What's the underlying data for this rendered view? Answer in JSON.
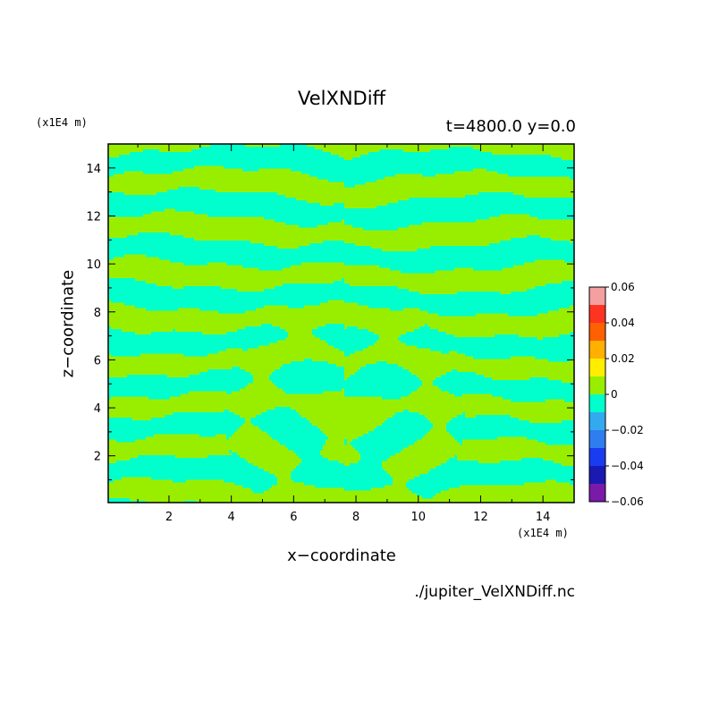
{
  "chart_data": {
    "type": "heatmap",
    "title": "VelXNDiff",
    "subtitle": "t=4800.0 y=0.0",
    "xlabel": "x−coordinate",
    "ylabel": "z−coordinate",
    "x_units": "(x1E4 m)",
    "z_units": "(x1E4 m)",
    "xlim": [
      0.05,
      15.0
    ],
    "ylim": [
      0.05,
      15.0
    ],
    "x_ticks": [
      "2",
      "4",
      "6",
      "8",
      "10",
      "12",
      "14"
    ],
    "y_ticks": [
      "2",
      "4",
      "6",
      "8",
      "10",
      "12",
      "14"
    ],
    "source_file": "./jupiter_VelXNDiff.nc",
    "colorbar": {
      "levels": [
        -0.06,
        -0.05,
        -0.04,
        -0.03,
        -0.02,
        -0.01,
        0,
        0.01,
        0.02,
        0.03,
        0.04,
        0.05,
        0.06
      ],
      "colors": [
        "#7a1aa8",
        "#1a1ab3",
        "#1a3cf0",
        "#2e7ef0",
        "#33aaf0",
        "#00ffcc",
        "#99ee00",
        "#ffee00",
        "#ffb000",
        "#ff6000",
        "#ff3322",
        "#f4a0a0"
      ],
      "tick_labels": [
        "0.06",
        "0.04",
        "0.02",
        "0",
        "−0.02",
        "−0.04",
        "−0.06"
      ]
    },
    "field_colors": {
      "positive": "#99ee00",
      "negative": "#00ffcc"
    }
  }
}
